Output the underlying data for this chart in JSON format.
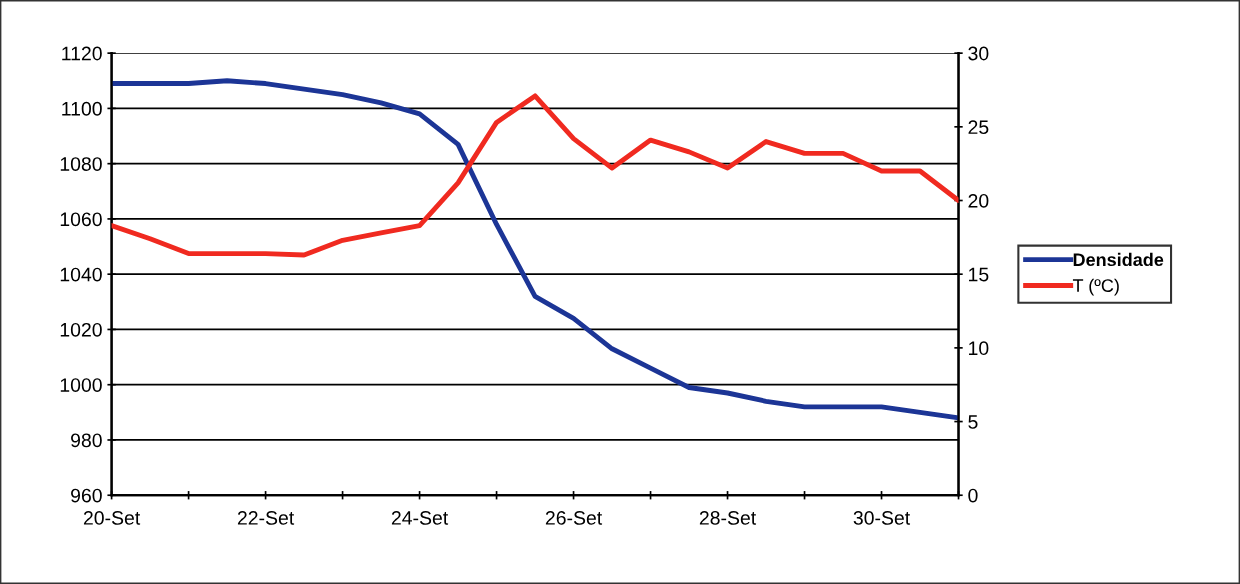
{
  "chart_data": {
    "type": "line",
    "x": [
      20,
      20.5,
      21,
      21.5,
      22,
      22.5,
      23,
      23.5,
      24,
      24.5,
      25,
      25.5,
      26,
      26.5,
      27,
      27.5,
      28,
      28.5,
      29,
      29.5,
      30,
      30.5,
      31
    ],
    "series": [
      {
        "name": "Densidade",
        "color": "#1c3596",
        "values": [
          1109,
          1109,
          1109,
          1110,
          1109,
          1107,
          1105,
          1102,
          1098,
          1087,
          1058,
          1032,
          1024,
          1013,
          1006,
          999,
          997,
          994,
          992,
          992,
          992,
          990,
          988
        ]
      },
      {
        "name": "T (ºC)",
        "color": "#f02a20",
        "axis": "y2",
        "values": [
          18.3,
          17.4,
          16.4,
          16.4,
          16.4,
          16.3,
          17.3,
          17.8,
          18.3,
          21.2,
          25.3,
          27.1,
          24.2,
          22.2,
          24.1,
          23.3,
          22.2,
          24.0,
          23.2,
          23.2,
          22.0,
          22.0,
          20.0
        ]
      }
    ],
    "xlim": [
      20,
      31
    ],
    "xticks": [
      {
        "value": 20,
        "label": "20-Set"
      },
      {
        "value": 21,
        "label": null
      },
      {
        "value": 22,
        "label": "22-Set"
      },
      {
        "value": 23,
        "label": null
      },
      {
        "value": 24,
        "label": "24-Set"
      },
      {
        "value": 25,
        "label": null
      },
      {
        "value": 26,
        "label": "26-Set"
      },
      {
        "value": 27,
        "label": null
      },
      {
        "value": 28,
        "label": "28-Set"
      },
      {
        "value": 29,
        "label": null
      },
      {
        "value": 30,
        "label": "30-Set"
      },
      {
        "value": 31,
        "label": null
      }
    ],
    "ylim": [
      960,
      1120
    ],
    "yticks": [
      960,
      980,
      1000,
      1020,
      1040,
      1060,
      1080,
      1100,
      1120
    ],
    "y2lim": [
      0,
      30
    ],
    "y2ticks": [
      0,
      5,
      10,
      15,
      20,
      25,
      30
    ],
    "grid": "y",
    "legend": "right",
    "marker": "none",
    "line_style": "solid"
  }
}
